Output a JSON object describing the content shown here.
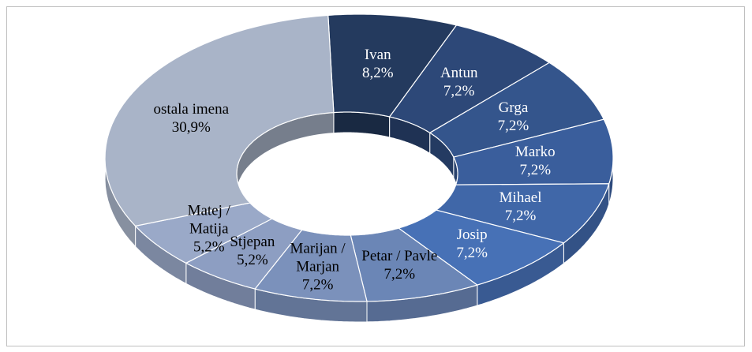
{
  "chart_data": {
    "type": "donut3d",
    "categories": [
      "Ivan",
      "Antun",
      "Grga",
      "Marko",
      "Mihael",
      "Josip",
      "Petar / Pavle",
      "Marijan / Marjan",
      "Stjepan",
      "Matej / Matija",
      "ostala imena"
    ],
    "values": [
      8.2,
      7.2,
      7.2,
      7.2,
      7.2,
      7.2,
      7.2,
      7.2,
      5.2,
      5.2,
      30.9
    ],
    "value_labels": [
      "8,2%",
      "7,2%",
      "7,2%",
      "7,2%",
      "7,2%",
      "7,2%",
      "7,2%",
      "7,2%",
      "5,2%",
      "5,2%",
      "30,9%"
    ],
    "colors": [
      "#243a5e",
      "#2d4878",
      "#34558c",
      "#3a5e9c",
      "#4067a8",
      "#4771b6",
      "#6b86b6",
      "#7b91bb",
      "#8d9ec2",
      "#9aa9c8",
      "#a9b4c8"
    ]
  }
}
